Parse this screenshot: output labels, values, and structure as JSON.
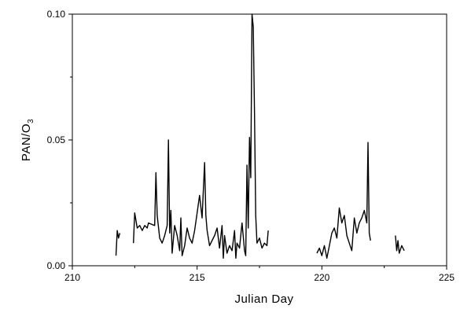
{
  "chart_data": {
    "type": "line",
    "title": "",
    "xlabel": "Julian Day",
    "ylabel_main": "PAN/O",
    "ylabel_subscript": "3",
    "xlim": [
      210,
      225
    ],
    "ylim": [
      0,
      0.1
    ],
    "xticks": [
      210,
      215,
      220,
      225
    ],
    "xtick_labels": [
      "210",
      "215",
      "220",
      "225"
    ],
    "yticks": [
      0,
      0.05,
      0.1
    ],
    "ytick_labels": [
      "0.00",
      "0.05",
      "0.10"
    ],
    "grid": false,
    "legend": "none",
    "line_color": "#000000",
    "series": [
      {
        "x": [
          211.75,
          211.8,
          211.85,
          211.9,
          212.45,
          212.5,
          212.55,
          212.6,
          212.7,
          212.8,
          212.9,
          213.0,
          213.05,
          213.3,
          213.35,
          213.4,
          213.5,
          213.6,
          213.7,
          213.8,
          213.85,
          213.9,
          213.95,
          214.0,
          214.1,
          214.2,
          214.3,
          214.35,
          214.4,
          214.5,
          214.6,
          214.7,
          214.8,
          214.9,
          215.0,
          215.1,
          215.2,
          215.3,
          215.35,
          215.4,
          215.5,
          215.6,
          215.7,
          215.8,
          215.9,
          216.0,
          216.05,
          216.1,
          216.2,
          216.3,
          216.4,
          216.5,
          216.55,
          216.6,
          216.7,
          216.8,
          216.9,
          216.95,
          217.0,
          217.05,
          217.1,
          217.15,
          217.2,
          217.25,
          217.3,
          217.35,
          217.4,
          217.5,
          217.6,
          217.7,
          217.8,
          217.85,
          219.8,
          219.9,
          220.0,
          220.1,
          220.2,
          220.3,
          220.4,
          220.5,
          220.6,
          220.7,
          220.8,
          220.9,
          221.0,
          221.1,
          221.2,
          221.3,
          221.4,
          221.5,
          221.6,
          221.7,
          221.8,
          221.85,
          221.9,
          221.95,
          222.95,
          223.0,
          223.05,
          223.1,
          223.2,
          223.3
        ],
        "y": [
          0.004,
          0.014,
          0.011,
          0.013,
          0.009,
          0.021,
          0.018,
          0.015,
          0.016,
          0.014,
          0.016,
          0.015,
          0.017,
          0.016,
          0.037,
          0.02,
          0.011,
          0.009,
          0.012,
          0.016,
          0.05,
          0.013,
          0.022,
          0.005,
          0.016,
          0.012,
          0.006,
          0.019,
          0.004,
          0.008,
          0.015,
          0.011,
          0.009,
          0.014,
          0.021,
          0.028,
          0.019,
          0.041,
          0.02,
          0.014,
          0.008,
          0.01,
          0.012,
          0.015,
          0.007,
          0.016,
          0.003,
          0.012,
          0.005,
          0.008,
          0.006,
          0.014,
          0.003,
          0.009,
          0.007,
          0.017,
          0.006,
          0.004,
          0.04,
          0.015,
          0.051,
          0.035,
          0.1,
          0.095,
          0.06,
          0.02,
          0.009,
          0.011,
          0.007,
          0.009,
          0.008,
          0.014,
          0.005,
          0.007,
          0.004,
          0.008,
          0.003,
          0.008,
          0.013,
          0.015,
          0.011,
          0.023,
          0.017,
          0.02,
          0.012,
          0.009,
          0.006,
          0.019,
          0.013,
          0.017,
          0.019,
          0.022,
          0.017,
          0.049,
          0.013,
          0.01,
          0.012,
          0.006,
          0.01,
          0.005,
          0.008,
          0.006
        ]
      }
    ]
  }
}
